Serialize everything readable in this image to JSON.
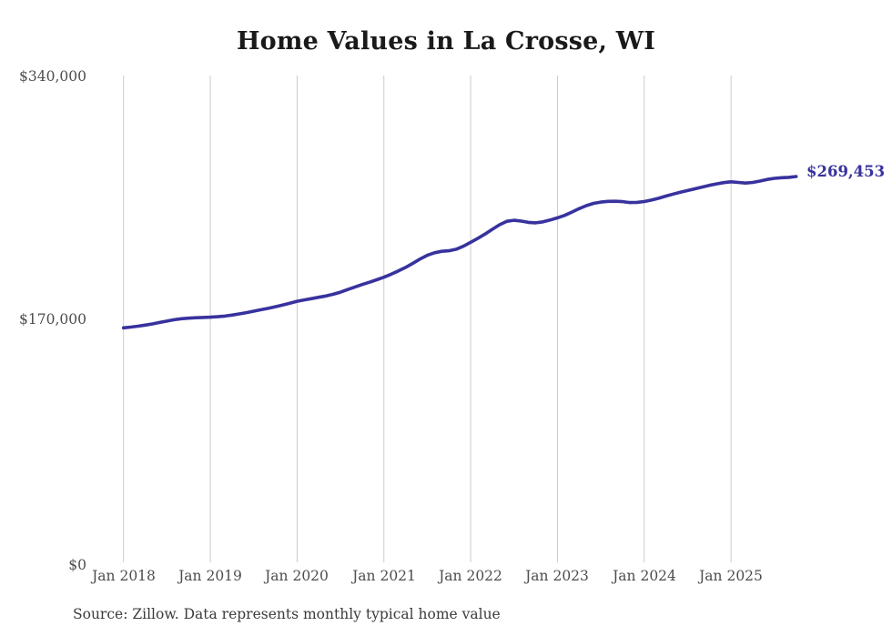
{
  "title": "Home Values in La Crosse, WI",
  "source_note": "Source: Zillow. Data represents monthly typical home value",
  "colors": {
    "line": "#38329e",
    "grid": "#cccccc",
    "title_text": "#1a1a1a",
    "axis_label_text": "#4d4d4d",
    "end_label_text": "#38329e",
    "source_text": "#3b3b3b"
  },
  "chart_data": {
    "type": "line",
    "title": "Home Values in La Crosse, WI",
    "frequency": "monthly",
    "grid": "vertical-only",
    "legend": "none",
    "ylim": [
      0,
      340000
    ],
    "y_ticks": [
      340000,
      170000,
      0
    ],
    "y_tick_labels": [
      "$340,000",
      "$170,000",
      "$0"
    ],
    "x_tick_labels": [
      "Jan 2018",
      "Jan 2019",
      "Jan 2020",
      "Jan 2021",
      "Jan 2022",
      "Jan 2023",
      "Jan 2024",
      "Jan 2025"
    ],
    "last_value": 269453,
    "last_value_label": "$269,453",
    "series": [
      {
        "name": "Typical home value",
        "start": "Jan 2018",
        "values": [
          163800,
          164300,
          164900,
          165700,
          166500,
          167500,
          168500,
          169400,
          170100,
          170500,
          170800,
          171000,
          171200,
          171500,
          172000,
          172700,
          173500,
          174400,
          175400,
          176400,
          177400,
          178500,
          179700,
          181000,
          182300,
          183300,
          184200,
          185100,
          186000,
          187200,
          188700,
          190500,
          192300,
          194000,
          195600,
          197300,
          199100,
          201200,
          203500,
          206000,
          208800,
          211800,
          214400,
          216200,
          217200,
          217600,
          218700,
          220800,
          223500,
          226300,
          229300,
          232600,
          235800,
          238200,
          238900,
          238300,
          237400,
          237100,
          237800,
          239100,
          240600,
          242300,
          244600,
          247000,
          249100,
          250700,
          251600,
          252100,
          252200,
          251900,
          251300,
          251400,
          252000,
          253000,
          254300,
          255800,
          257200,
          258500,
          259700,
          260900,
          262100,
          263300,
          264300,
          265200,
          265800,
          265300,
          264900,
          265300,
          266300,
          267400,
          268200,
          268600,
          268900,
          269453
        ]
      }
    ]
  }
}
